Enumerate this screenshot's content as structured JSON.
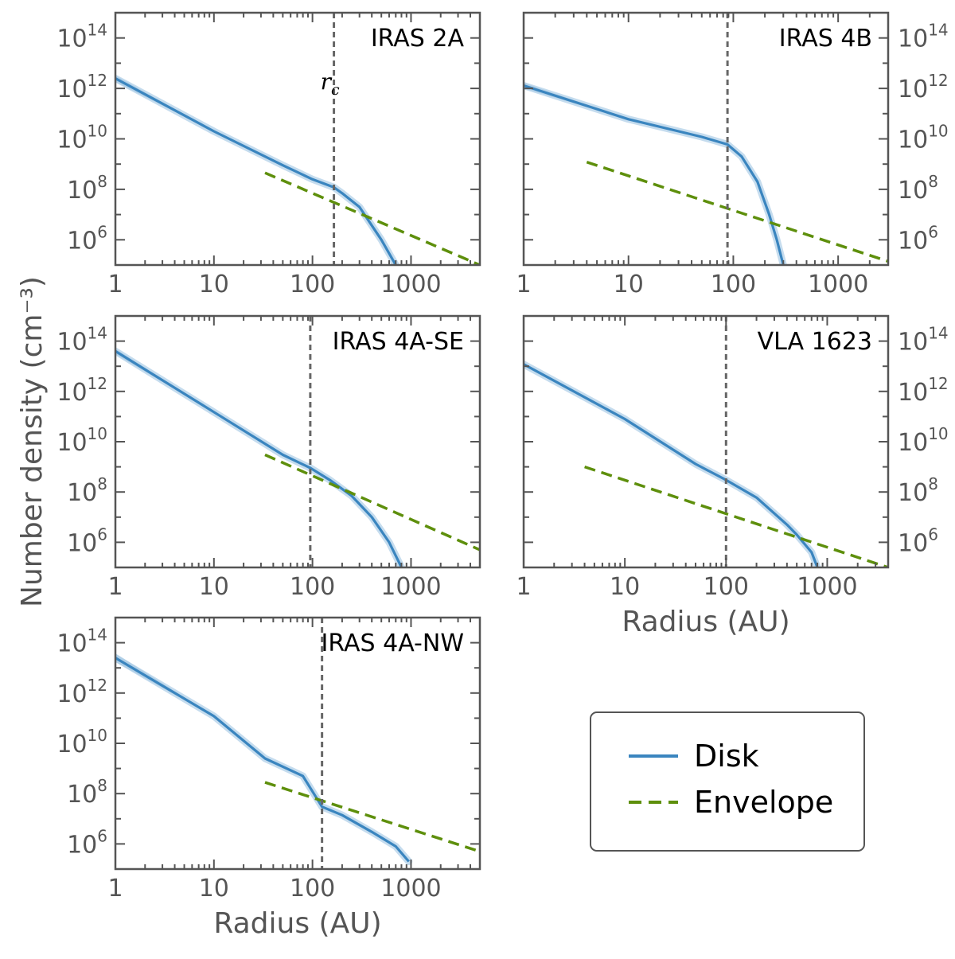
{
  "figure": {
    "ylabel": "Number density (cm⁻³)",
    "xlabel": "Radius (AU)",
    "rc_label": "r",
    "rc_subscript": "c"
  },
  "legend": {
    "position": "lower-right",
    "entries": [
      {
        "label": "Disk",
        "style": "solid",
        "color": "#3a85bf"
      },
      {
        "label": "Envelope",
        "style": "dashed",
        "color": "#5e8f0c"
      }
    ]
  },
  "colors": {
    "disk": "#3a85bf",
    "disk_band": "#9ec4e2",
    "envelope": "#5e8f0c",
    "rc_line": "#666666",
    "axes": "#555555"
  },
  "chart_data": [
    {
      "type": "line",
      "title": "IRAS 2A",
      "xscale": "log",
      "yscale": "log",
      "xlim": [
        1,
        5000
      ],
      "ylim": [
        100000,
        1000000000000000.0
      ],
      "xticks": [
        "1",
        "10",
        "100",
        "1000"
      ],
      "yticks": [
        "10^6",
        "10^8",
        "10^10",
        "10^12",
        "10^14"
      ],
      "rc": 165,
      "series": [
        {
          "name": "Disk",
          "x": [
            1,
            10,
            50,
            100,
            165,
            200,
            300,
            500,
            700
          ],
          "y": [
            2500000000000.0,
            20000000000.0,
            900000000.0,
            250000000.0,
            120000000.0,
            70000000.0,
            20000000.0,
            1000000.0,
            100000.0
          ],
          "band": [
            1800000000000.0,
            3300000000000.0
          ]
        },
        {
          "name": "Envelope",
          "x": [
            33,
            5000
          ],
          "y": [
            450000000.0,
            100000.0
          ]
        }
      ]
    },
    {
      "type": "line",
      "title": "IRAS 4B",
      "xscale": "log",
      "yscale": "log",
      "xlim": [
        1,
        3000
      ],
      "ylim": [
        100000,
        1000000000000000.0
      ],
      "xticks": [
        "1",
        "10",
        "100",
        "1000"
      ],
      "yticks": [
        "10^6",
        "10^8",
        "10^10",
        "10^12",
        "10^14"
      ],
      "rc": 88,
      "series": [
        {
          "name": "Disk",
          "x": [
            1,
            10,
            50,
            88,
            120,
            170,
            220,
            260,
            300
          ],
          "y": [
            1300000000000.0,
            60000000000.0,
            12000000000.0,
            6000000000.0,
            2000000000.0,
            200000000.0,
            10000000.0,
            1000000.0,
            100000.0
          ],
          "band": [
            1000000000000.0,
            1700000000000.0
          ]
        },
        {
          "name": "Envelope",
          "x": [
            4,
            3000
          ],
          "y": [
            1200000000.0,
            140000.0
          ]
        }
      ]
    },
    {
      "type": "line",
      "title": "IRAS 4A-SE",
      "xscale": "log",
      "yscale": "log",
      "xlim": [
        1,
        5000
      ],
      "ylim": [
        100000,
        1000000000000000.0
      ],
      "xticks": [
        "1",
        "10",
        "100",
        "1000"
      ],
      "yticks": [
        "10^6",
        "10^8",
        "10^10",
        "10^12",
        "10^14"
      ],
      "rc": 95,
      "series": [
        {
          "name": "Disk",
          "x": [
            1,
            10,
            50,
            95,
            150,
            250,
            400,
            600,
            800
          ],
          "y": [
            40000000000000.0,
            150000000000.0,
            3000000000.0,
            900000000.0,
            300000000.0,
            70000000.0,
            10000000.0,
            1000000.0,
            100000.0
          ],
          "band": [
            30000000000000.0,
            50000000000000.0
          ]
        },
        {
          "name": "Envelope",
          "x": [
            33,
            5000
          ],
          "y": [
            3000000000.0,
            500000.0
          ]
        }
      ]
    },
    {
      "type": "line",
      "title": "VLA 1623",
      "xscale": "log",
      "yscale": "log",
      "xlim": [
        1,
        4000
      ],
      "ylim": [
        100000,
        1000000000000000.0
      ],
      "xticks": [
        "1",
        "10",
        "100",
        "1000"
      ],
      "yticks": [
        "10^6",
        "10^8",
        "10^10",
        "10^12",
        "10^14"
      ],
      "rc": 100,
      "series": [
        {
          "name": "Disk",
          "x": [
            1,
            10,
            50,
            100,
            200,
            400,
            500,
            700,
            800
          ],
          "y": [
            12000000000000.0,
            80000000000.0,
            1300000000.0,
            300000000.0,
            60000000.0,
            5000000.0,
            2000000.0,
            400000.0,
            100000.0
          ]
        },
        {
          "name": "Envelope",
          "x": [
            4,
            4000
          ],
          "y": [
            1000000000.0,
            100000.0
          ]
        }
      ]
    },
    {
      "type": "line",
      "title": "IRAS 4A-NW",
      "xscale": "log",
      "yscale": "log",
      "xlim": [
        1,
        5000
      ],
      "ylim": [
        100000,
        1000000000000000.0
      ],
      "xticks": [
        "1",
        "10",
        "100",
        "1000"
      ],
      "yticks": [
        "10^6",
        "10^8",
        "10^10",
        "10^12",
        "10^14"
      ],
      "rc": 125,
      "series": [
        {
          "name": "Disk",
          "x": [
            1,
            10,
            33,
            80,
            125,
            200,
            400,
            700,
            950
          ],
          "y": [
            25000000000000.0,
            120000000000.0,
            2500000000.0,
            500000000.0,
            30000000.0,
            14000000.0,
            3000000.0,
            800000.0,
            200000.0
          ],
          "band": [
            17000000000000.0,
            38000000000000.0
          ]
        },
        {
          "name": "Envelope",
          "x": [
            33,
            5000
          ],
          "y": [
            280000000.0,
            500000.0
          ]
        }
      ]
    }
  ]
}
